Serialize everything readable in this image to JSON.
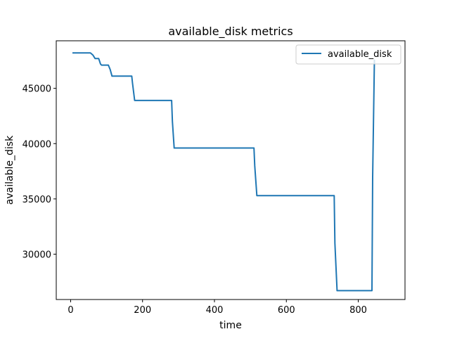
{
  "chart_data": {
    "type": "line",
    "title": "available_disk metrics",
    "xlabel": "time",
    "ylabel": "available_disk",
    "xlim": [
      -40,
      930
    ],
    "ylim": [
      25900,
      49300
    ],
    "x_ticks": [
      0,
      200,
      400,
      600,
      800
    ],
    "y_ticks": [
      30000,
      35000,
      40000,
      45000
    ],
    "grid": false,
    "legend_position": "top-right",
    "series": [
      {
        "name": "available_disk",
        "color": "#1f77b4",
        "x": [
          5,
          55,
          62,
          68,
          70,
          78,
          80,
          83,
          86,
          103,
          105,
          110,
          115,
          170,
          172,
          178,
          281,
          283,
          288,
          510,
          512,
          518,
          733,
          735,
          741,
          838,
          840,
          845
        ],
        "y": [
          48200,
          48200,
          48000,
          47700,
          47700,
          47700,
          47500,
          47200,
          47100,
          47100,
          47100,
          46700,
          46100,
          46100,
          45500,
          43900,
          43900,
          42000,
          39600,
          39600,
          38000,
          35300,
          35300,
          31000,
          26700,
          26700,
          37000,
          47600
        ]
      }
    ]
  }
}
